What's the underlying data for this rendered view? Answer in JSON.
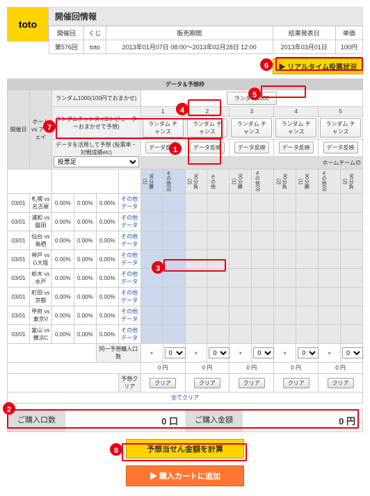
{
  "title": "開催回情報",
  "logo_text": "toto",
  "info": {
    "headers": [
      "開催回",
      "くじ",
      "販売期間",
      "結果発表日",
      "単価"
    ],
    "values": [
      "第576回",
      "toto",
      "2013年01月07日 08:00〜2013年02月28日 12:00",
      "2013年03月01日",
      "100円"
    ]
  },
  "realtime_button": "▶ リアルタイム投票状況",
  "section_header": "データ＆予想枠",
  "random1000_label": "ランダム1000(100円でおまかせ)",
  "random1000_btn": "ランダム1000",
  "random_chance_label": "ランダムチャンス\n(コンピューターおまかせで予想)",
  "random_chance_btn": "ランダム\nチャンス",
  "data_reflect_btn": "データ反映",
  "dropdown_label": "データを活用して予想 (投票率・対戦成績etc)",
  "dropdown_value": "投票足",
  "home_team_header": "ホームチームの",
  "side_label_date": "開催日",
  "side_label_match": "ホーム vs アウェイ",
  "col_heads": [
    "90分勝(1)",
    "その他(0)",
    "90分負(2)",
    "その他",
    "データ"
  ],
  "matches": [
    {
      "date": "03/01",
      "home": "札幌",
      "away": "名古屋",
      "pct": [
        "0.00%",
        "0.00%",
        "0.00%"
      ]
    },
    {
      "date": "03/01",
      "home": "浦和",
      "away": "磐田",
      "pct": [
        "0.00%",
        "0.00%",
        "0.00%"
      ]
    },
    {
      "date": "03/01",
      "home": "仙台",
      "away": "鳥栖",
      "pct": [
        "0.00%",
        "0.00%",
        "0.00%"
      ]
    },
    {
      "date": "03/01",
      "home": "神戸",
      "away": "G大阪",
      "pct": [
        "0.00%",
        "0.00%",
        "0.00%"
      ]
    },
    {
      "date": "03/01",
      "home": "栃木",
      "away": "水戸",
      "pct": [
        "0.00%",
        "0.00%",
        "0.00%"
      ]
    },
    {
      "date": "03/01",
      "home": "町田",
      "away": "京都",
      "pct": [
        "0.00%",
        "0.00%",
        "0.00%"
      ]
    },
    {
      "date": "03/01",
      "home": "甲府",
      "away": "東京V",
      "pct": [
        "0.00%",
        "0.00%",
        "0.00%"
      ]
    },
    {
      "date": "03/01",
      "home": "富山",
      "away": "横浜C",
      "pct": [
        "0.00%",
        "0.00%",
        "0.00%"
      ]
    }
  ],
  "link_text": "その他\nデータ",
  "same_pred_label": "同一予想購入口数",
  "x_symbol": "×",
  "zero_opt": "0",
  "zero_yen": "0 円",
  "pred_clear": "予想クリア",
  "clear_btn": "クリア",
  "all_clear": "全てクリア",
  "purchase_count_label": "ご購入口数",
  "purchase_count_value": "0 口",
  "purchase_amount_label": "ご購入金額",
  "purchase_amount_value": "0 円",
  "calc_button": "予想当せん金額を計算",
  "cart_button": "▶ 購入カートに追加",
  "callouts": {
    "1": "1",
    "2": "2",
    "3": "3",
    "4": "4",
    "5": "5",
    "6": "6",
    "7": "7",
    "8": "8"
  },
  "col_nums": [
    "1",
    "2",
    "3",
    "4",
    "5"
  ]
}
